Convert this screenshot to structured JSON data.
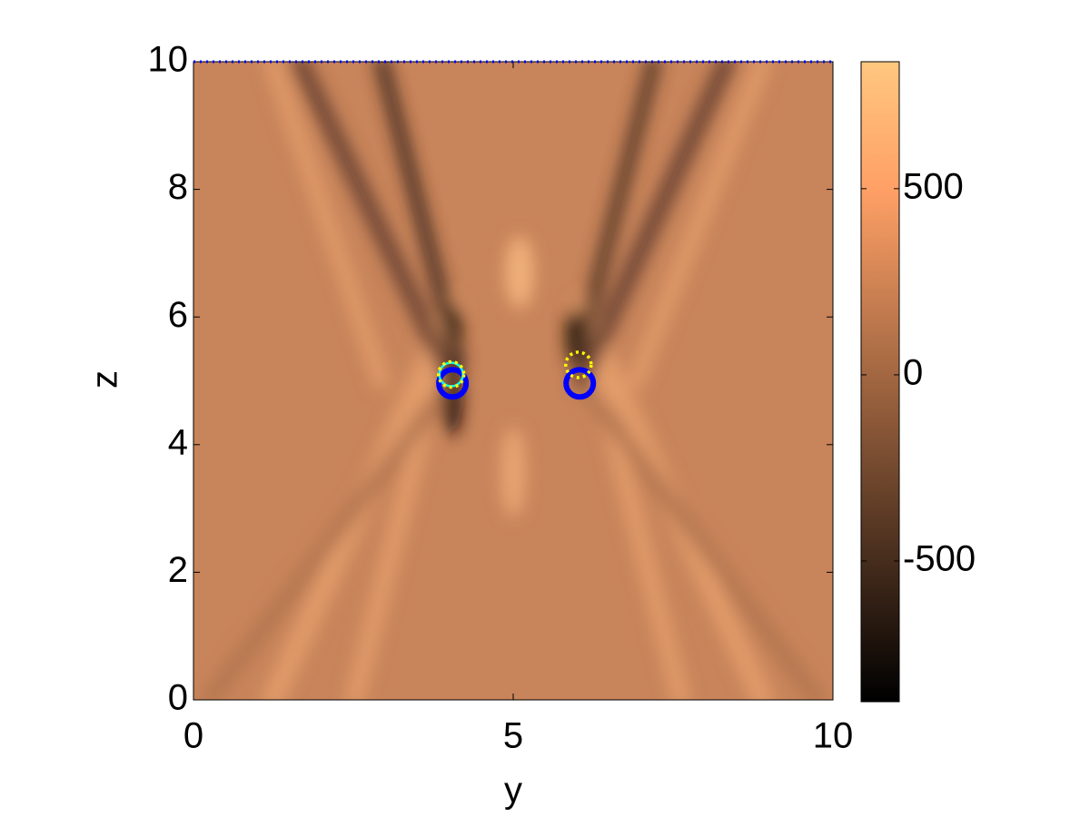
{
  "chart_data": {
    "type": "scatter",
    "xlabel": "y",
    "ylabel": "z",
    "xlim": [
      0,
      10
    ],
    "ylim": [
      0,
      10
    ],
    "xticks": [
      0,
      5,
      10
    ],
    "yticks": [
      0,
      2,
      4,
      6,
      8,
      10
    ],
    "colorbar": {
      "clim": [
        -878,
        841
      ],
      "ticks": [
        -500,
        0,
        500
      ],
      "colormap": "copper"
    },
    "series": [
      {
        "color": "#0000ff",
        "marker": "dotted-line",
        "x": [
          0,
          10
        ],
        "values": [
          10,
          10
        ]
      },
      {
        "color": "#0000ff",
        "marker": "circle-thick",
        "x": [
          4.05,
          6.04
        ],
        "values": [
          4.96,
          4.96
        ]
      },
      {
        "color": "#00ffff",
        "marker": "circle",
        "x": [
          4.03
        ],
        "values": [
          5.1
        ]
      },
      {
        "color": "#ffff00",
        "marker": "circle-dotted",
        "x": [
          4.03,
          6.02
        ],
        "values": [
          5.1,
          5.25
        ]
      }
    ]
  }
}
